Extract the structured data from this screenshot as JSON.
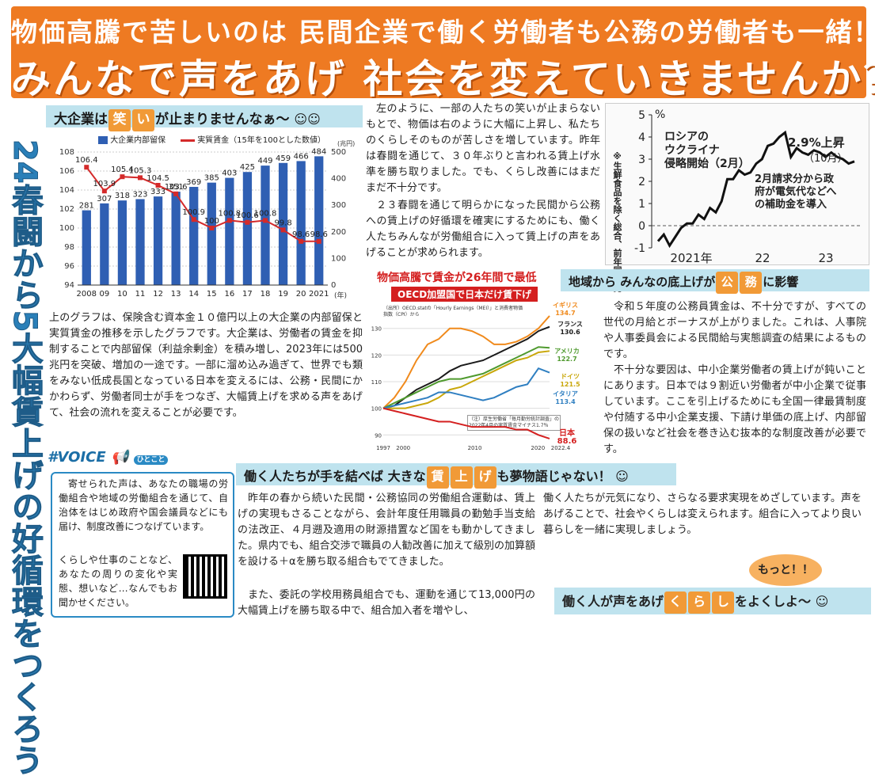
{
  "banner": {
    "line1": "物価高騰で苦しいのは 民間企業で働く労働者も公務の労働者も一緒！",
    "line2": "みんなで声をあげ 社会を変えていきませんか？"
  },
  "vertical_title": "24春闘から5大幅賃上げの好循環をつくろう",
  "section1": {
    "pre": "大企業は",
    "h1": "笑",
    "h2": "い",
    "post": "が止まりませんなぁ～",
    "icon": "laughing-face-icon"
  },
  "chart1": {
    "legend_bar": "大企業内部留保",
    "legend_line": "実質賃金（15年を100とした数値）",
    "unit_right": "(兆円)",
    "unit_year": "(年)"
  },
  "chart_data": [
    {
      "type": "bar",
      "title": "",
      "categories": [
        "2008",
        "09",
        "10",
        "11",
        "12",
        "13",
        "14",
        "15",
        "16",
        "17",
        "18",
        "19",
        "20",
        "2021"
      ],
      "series": [
        {
          "name": "大企業内部留保",
          "values": [
            281,
            307,
            318,
            323,
            333,
            351,
            369,
            385,
            403,
            425,
            449,
            459,
            466,
            484
          ],
          "labels": [
            "281",
            "307",
            "318",
            "323",
            "333",
            "351",
            "369",
            "385",
            "403",
            "425",
            "449",
            "459",
            "466",
            "484"
          ]
        },
        {
          "name": "実質賃金（15年を100とした数値）",
          "values": [
            106.4,
            103.9,
            105.4,
            105.3,
            104.5,
            103.6,
            100.9,
            100,
            100.8,
            100.6,
            100.8,
            99.8,
            98.6,
            98.6
          ],
          "labels": [
            "106.4",
            "103.9",
            "105.4",
            "105.3",
            "104.5",
            "103.6",
            "100.9",
            "100",
            "100.8",
            "100.6",
            "100.8",
            "99.8",
            "98.6",
            "98.6"
          ]
        }
      ],
      "ylim_left": [
        94,
        108
      ],
      "ylim_right": [
        0,
        500
      ],
      "yticks_left": [
        "108",
        "106",
        "104",
        "102",
        "100",
        "98",
        "96",
        "94"
      ],
      "yticks_right": [
        "500",
        "400",
        "300",
        "200",
        "100",
        "0"
      ],
      "colors": {
        "bar": "#2f5fb3",
        "line": "#d42a2a"
      }
    },
    {
      "type": "line",
      "title": "",
      "ylabel": "※生鮮食品を除く総合、前年同月比",
      "yunit": "%",
      "yticks": [
        "5",
        "4",
        "3",
        "2",
        "1",
        "0",
        "-1"
      ],
      "ylim": [
        -1,
        5
      ],
      "xlabels": [
        "2021年",
        "22",
        "23"
      ],
      "series": [
        {
          "values": [
            -0.7,
            -0.4,
            -0.9,
            -0.5,
            -0.1,
            0.1,
            0.1,
            0.5,
            0.3,
            0.8,
            0.6,
            1.1,
            2.1,
            2.1,
            2.5,
            2.3,
            2.4,
            2.8,
            3.0,
            3.6,
            3.7,
            4.0,
            4.2,
            3.1,
            3.5,
            3.3,
            3.2,
            3.4,
            3.3,
            3.1,
            3.3,
            3.1,
            3.0,
            2.8,
            2.9
          ]
        }
      ],
      "annotations": [
        "ロシアの",
        "ウクライナ",
        "侵略開始（2月）",
        "2.9%上昇",
        "（10月）",
        "2月請求分から政",
        "府が電気代などへ",
        "の補助金を導入"
      ]
    },
    {
      "type": "line",
      "title": "物価高騰で賃金が26年間で最低",
      "subtitle": "OECD加盟国で日本だけ賃下げ",
      "source": "（出所）OECD.statの「Hourly Earnings（MEI）」と消費者物価指数（CPI）から",
      "note": "（注）厚生労働省「毎月勤労統計調査」の2022年4月の実質賃金マイナス1.7％",
      "yticks": [
        "130",
        "120",
        "110",
        "100",
        "90"
      ],
      "ylim": [
        88,
        132
      ],
      "xticks": [
        "1997",
        "2000",
        "2010",
        "2020",
        "2022.4"
      ],
      "series": [
        {
          "name": "イギリス",
          "value_label": "134.7",
          "color": "#f08a1c"
        },
        {
          "name": "フランス",
          "value_label": "130.6",
          "color": "#1a1a1a"
        },
        {
          "name": "アメリカ",
          "value_label": "122.7",
          "color": "#4f9a2e"
        },
        {
          "name": "ドイツ",
          "value_label": "121.5",
          "color": "#c9a70a"
        },
        {
          "name": "イタリア",
          "value_label": "113.4",
          "color": "#2f7fc1"
        },
        {
          "name": "日本",
          "value_label": "88.6",
          "color": "#d41f1f"
        }
      ]
    }
  ],
  "text_left": "上のグラフは、保険含む資本金１０億円以上の大企業の内部留保と実質賃金の推移を示したグラフです。大企業は、労働者の賃金を抑制することで内部留保（利益余剰金）を積み増し、2023年には500兆円を突破、増加の一途です。一部に溜め込み過ぎて、世界でも類をみない低成長国となっている日本を変えるには、公務・民間にかかわらず、労働者同士が手をつなぎ、大幅賃上げを求める声をあげて、社会の流れを変えることが必要です。",
  "text_mid": "左のように、一部の人たちの笑いが止まらないもとで、物価は右のように大幅に上昇し、私たちのくらしそのものが苦しさを増しています。昨年は春闘を通じて、３０年ぶりと言われる賃上げ水準を勝ち取りました。でも、くらし改善にはまだまだ不十分です。",
  "text_mid2": "２３春闘を通じて明らかになった民間から公務への賃上げの好循環を確実にするためにも、働く人たちみんなが労働組合に入って賃上げの声をあげることが求められます。",
  "section2": {
    "pre": "地域から みんなの底上げが",
    "h1": "公",
    "h2": "務",
    "post": "に影響"
  },
  "text_right": "令和５年度の公務員賃金は、不十分ですが、すべての世代の月給とボーナスが上がりました。これは、人事院や人事委員会による民間給与実態調査の結果によるものです。",
  "text_right2": "不十分な要因は、中小企業労働者の賃上げが鈍いことにあります。日本では９割近い労働者が中小企業で従事しています。ここを引上げるためにも全国一律最賃制度や付随する中小企業支援、下請け単価の底上げ、内部留保の扱いなど社会を巻き込む抜本的な制度改善が必要です。",
  "voice": {
    "head": "#VOICE",
    "tag": "ひとこと",
    "text1": "寄せられた声は、あなたの職場の労働組合や地域の労働組合を通じて、自治体をはじめ政府や国会議員などにも届け、制度改善につなげています。",
    "text2": "くらしや仕事のことなど、あなたの周りの変化や実態、想いなど…なんでもお聞かせください。"
  },
  "section3": {
    "pre": "働く人たちが手を結べば 大きな",
    "h1": "賃",
    "h2": "上",
    "h3": "げ",
    "post": "も夢物語じゃない！"
  },
  "text_bottom_left": "昨年の春から続いた民間・公務協同の労働組合運動は、賃上げの実現もさることながら、会計年度任用職員の勤勉手当支給の法改正、４月遡及適用の財源措置など国をも動かしてきました。県内でも、組合交渉で職員の人勧改善に加えて級別の加算額を設ける＋αを勝ち取る組合もでてきました。",
  "text_bottom_left2": "また、委託の学校用務員組合でも、運動を通じて13,000円の大幅賃上げを勝ち取る中で、組合加入者を増やし、",
  "text_bottom_right": "働く人たちが元気になり、さらなる要求実現をめざしています。声をあげることで、社会やくらしは変えられます。組合に入ってより良い暮らしを一緒に実現しましょう。",
  "bubble": "もっと！！",
  "closing": {
    "pre": "働く人が声をあげ",
    "h1": "く",
    "h2": "ら",
    "h3": "し",
    "post": "をよくしよ～"
  }
}
